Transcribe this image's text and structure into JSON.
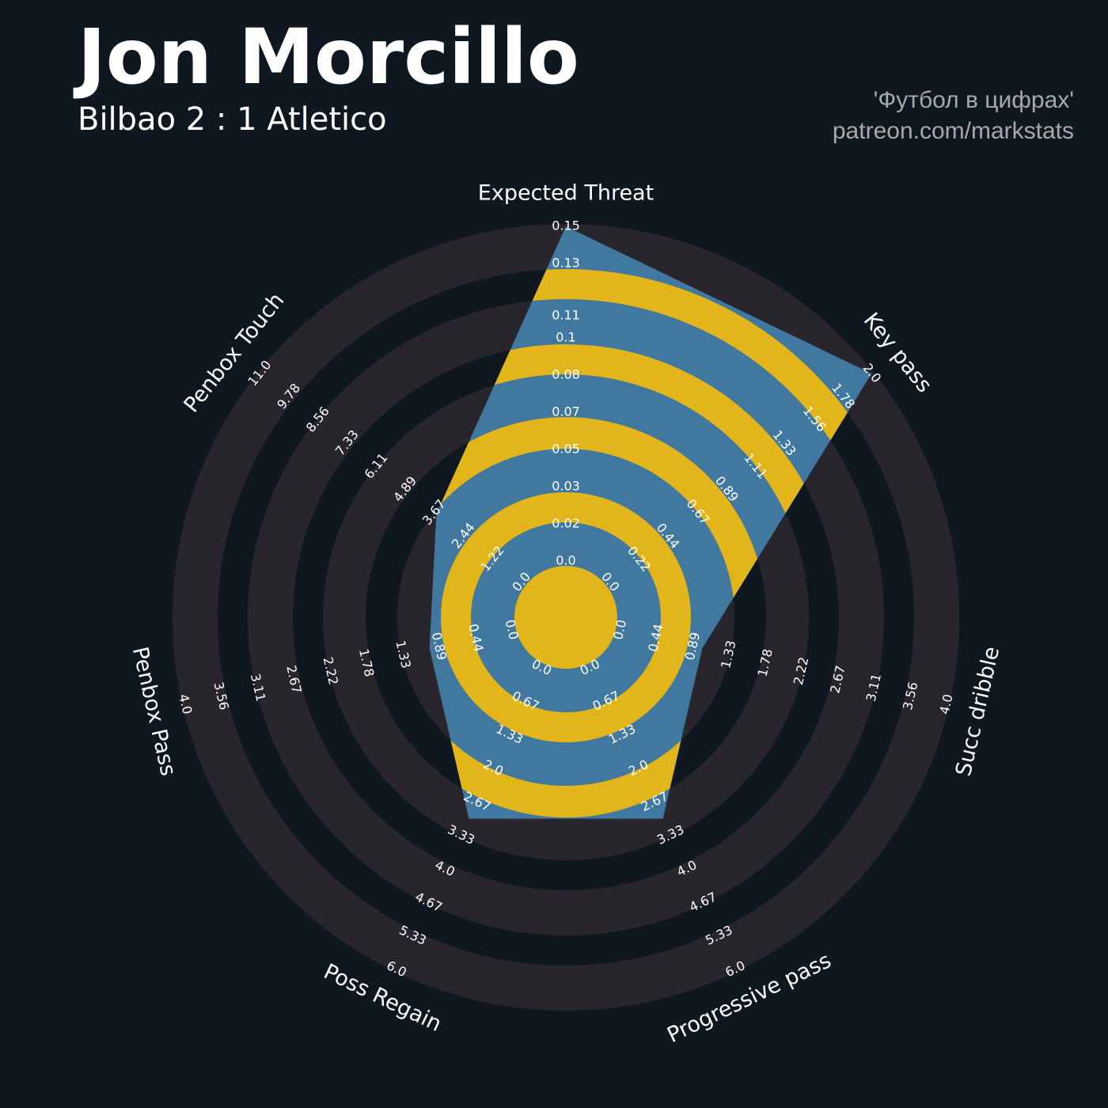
{
  "chart_data": {
    "type": "radar",
    "title": "Jon Morcillo",
    "subtitle": "Bilbao 2 : 1 Atletico",
    "credits": [
      "'Футбол в цифрах'",
      "patreon.com/markstats"
    ],
    "categories": [
      "Expected Threat",
      "Key pass",
      "Succ dribble",
      "Progressive pass",
      "Poss Regain",
      "Penbox Pass",
      "Penbox Touch"
    ],
    "values": [
      0.15,
      2.0,
      1.0,
      3.0,
      3.0,
      1.0,
      3.6
    ],
    "ranges": [
      [
        0,
        0.15
      ],
      [
        0,
        2
      ],
      [
        0,
        4
      ],
      [
        0,
        6
      ],
      [
        0,
        6
      ],
      [
        0,
        4
      ],
      [
        0,
        11
      ]
    ],
    "ticks": [
      [
        {
          "value": 0,
          "label": "0.0"
        },
        {
          "value": 0.0167,
          "label": "0.02"
        },
        {
          "value": 0.0333,
          "label": "0.03"
        },
        0.05,
        {
          "value": 0.0667,
          "label": "0.07"
        },
        {
          "value": 0.0833,
          "label": "0.08"
        },
        0.1,
        0.11,
        {
          "value": 0.1333,
          "label": "0.13"
        },
        0.15
      ],
      [
        {
          "value": 0,
          "label": "0.0"
        },
        0.22,
        0.44,
        0.67,
        0.89,
        1.11,
        1.33,
        1.56,
        1.78,
        {
          "value": 2,
          "label": "2.0"
        }
      ],
      [
        {
          "value": 0,
          "label": "0.0"
        },
        0.44,
        0.89,
        1.33,
        1.78,
        2.22,
        2.67,
        3.11,
        3.56,
        {
          "value": 4,
          "label": "4.0"
        }
      ],
      [
        {
          "value": 0,
          "label": "0.0"
        },
        0.67,
        1.33,
        {
          "value": 2,
          "label": "2.0"
        },
        2.67,
        3.33,
        {
          "value": 4,
          "label": "4.0"
        },
        4.67,
        5.33,
        {
          "value": 6,
          "label": "6.0"
        }
      ],
      [
        {
          "value": 0,
          "label": "0.0"
        },
        0.67,
        1.33,
        {
          "value": 2,
          "label": "2.0"
        },
        2.67,
        3.33,
        {
          "value": 4,
          "label": "4.0"
        },
        4.67,
        5.33,
        {
          "value": 6,
          "label": "6.0"
        }
      ],
      [
        {
          "value": 0,
          "label": "0.0"
        },
        0.44,
        0.89,
        1.33,
        1.78,
        2.22,
        2.67,
        3.11,
        3.56,
        {
          "value": 4,
          "label": "4.0"
        }
      ],
      [
        {
          "value": 0,
          "label": "0.0"
        },
        1.22,
        2.44,
        3.67,
        4.89,
        6.11,
        7.33,
        8.56,
        9.78,
        {
          "value": 11,
          "label": "11.0"
        }
      ]
    ],
    "color": "#41789f",
    "ring_color": "#28252c",
    "highlight_color": "#e2b51b"
  }
}
